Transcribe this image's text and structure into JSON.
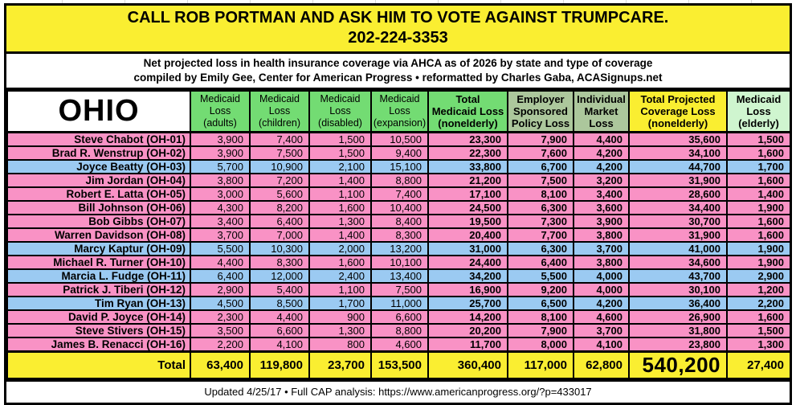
{
  "colors": {
    "yellow": "#FAEE31",
    "green": "#73DC73",
    "sage": "#ACC79C",
    "pale_green": "#CFF5CF",
    "pink": "#F992C5",
    "blue": "#9BCAF2",
    "border": "#000000"
  },
  "banner": {
    "line1": "CALL ROB PORTMAN AND ASK HIM TO VOTE AGAINST TRUMPCARE.",
    "line2": "202-224-3353"
  },
  "subtitle": {
    "line1": "Net projected loss in health insurance coverage via AHCA as of 2026 by state and type of coverage",
    "line2": "compiled by Emily Gee, Center for American Progress  •  reformatted by Charles Gaba, ACASignups.net"
  },
  "table": {
    "state_label": "OHIO",
    "columns": [
      {
        "key": "medicaid-adults",
        "label": "Medicaid\nLoss\n(adults)",
        "bg": "#73DC73",
        "bold": false
      },
      {
        "key": "medicaid-children",
        "label": "Medicaid\nLoss\n(children)",
        "bg": "#73DC73",
        "bold": false
      },
      {
        "key": "medicaid-disabled",
        "label": "Medicaid\nLoss\n(disabled)",
        "bg": "#73DC73",
        "bold": false
      },
      {
        "key": "medicaid-expansion",
        "label": "Medicaid\nLoss\n(expansion)",
        "bg": "#73DC73",
        "bold": false
      },
      {
        "key": "total-medicaid-nonelderly",
        "label": "Total\nMedicaid Loss\n(nonelderly)",
        "bg": "#73DC73",
        "bold": true
      },
      {
        "key": "employer-sponsored",
        "label": "Employer\nSponsored\nPolicy Loss",
        "bg": "#ACC79C",
        "bold": true
      },
      {
        "key": "individual-market",
        "label": "Individual\nMarket\nLoss",
        "bg": "#ACC79C",
        "bold": true
      },
      {
        "key": "total-projected",
        "label": "Total Projected\nCoverage Loss\n(nonelderly)",
        "bg": "#FAEE31",
        "bold": true
      },
      {
        "key": "medicaid-elderly",
        "label": "Medicaid\nLoss\n(elderly)",
        "bg": "#CFF5CF",
        "bold": true
      }
    ],
    "rows": [
      {
        "name": "Steve Chabot (OH-01)",
        "party": "pink",
        "values": [
          "3,900",
          "7,400",
          "1,500",
          "10,500",
          "23,300",
          "7,900",
          "4,400",
          "35,600",
          "1,500"
        ]
      },
      {
        "name": "Brad R. Wenstrup (OH-02)",
        "party": "pink",
        "values": [
          "3,900",
          "7,500",
          "1,500",
          "9,400",
          "22,300",
          "7,600",
          "4,200",
          "34,100",
          "1,600"
        ]
      },
      {
        "name": "Joyce Beatty (OH-03)",
        "party": "blue",
        "values": [
          "5,700",
          "10,900",
          "2,100",
          "15,100",
          "33,800",
          "6,700",
          "4,200",
          "44,700",
          "1,700"
        ]
      },
      {
        "name": "Jim Jordan (OH-04)",
        "party": "pink",
        "values": [
          "3,800",
          "7,200",
          "1,400",
          "8,800",
          "21,200",
          "7,500",
          "3,200",
          "31,900",
          "1,600"
        ]
      },
      {
        "name": "Robert E. Latta (OH-05)",
        "party": "pink",
        "values": [
          "3,000",
          "5,600",
          "1,100",
          "7,400",
          "17,100",
          "8,100",
          "3,400",
          "28,600",
          "1,400"
        ]
      },
      {
        "name": "Bill Johnson (OH-06)",
        "party": "pink",
        "values": [
          "4,300",
          "8,200",
          "1,600",
          "10,400",
          "24,500",
          "6,300",
          "3,600",
          "34,400",
          "1,900"
        ]
      },
      {
        "name": "Bob Gibbs (OH-07)",
        "party": "pink",
        "values": [
          "3,400",
          "6,400",
          "1,300",
          "8,400",
          "19,500",
          "7,300",
          "3,900",
          "30,700",
          "1,600"
        ]
      },
      {
        "name": "Warren Davidson (OH-08)",
        "party": "pink",
        "values": [
          "3,700",
          "7,000",
          "1,400",
          "8,300",
          "20,400",
          "7,700",
          "3,800",
          "31,900",
          "1,600"
        ]
      },
      {
        "name": "Marcy Kaptur (OH-09)",
        "party": "blue",
        "values": [
          "5,500",
          "10,300",
          "2,000",
          "13,200",
          "31,000",
          "6,300",
          "3,700",
          "41,000",
          "1,900"
        ]
      },
      {
        "name": "Michael R. Turner (OH-10)",
        "party": "pink",
        "values": [
          "4,400",
          "8,300",
          "1,600",
          "10,100",
          "24,400",
          "6,400",
          "3,800",
          "34,600",
          "1,900"
        ]
      },
      {
        "name": "Marcia L. Fudge (OH-11)",
        "party": "blue",
        "values": [
          "6,400",
          "12,000",
          "2,400",
          "13,400",
          "34,200",
          "5,500",
          "4,000",
          "43,700",
          "2,900"
        ]
      },
      {
        "name": "Patrick J. Tiberi (OH-12)",
        "party": "pink",
        "values": [
          "2,900",
          "5,400",
          "1,100",
          "7,500",
          "16,900",
          "9,200",
          "4,000",
          "30,100",
          "1,200"
        ]
      },
      {
        "name": "Tim Ryan (OH-13)",
        "party": "blue",
        "values": [
          "4,500",
          "8,500",
          "1,700",
          "11,000",
          "25,700",
          "6,500",
          "4,200",
          "36,400",
          "2,200"
        ]
      },
      {
        "name": "David P. Joyce (OH-14)",
        "party": "pink",
        "values": [
          "2,300",
          "4,400",
          "900",
          "6,600",
          "14,200",
          "8,100",
          "4,600",
          "26,900",
          "1,600"
        ]
      },
      {
        "name": "Steve Stivers (OH-15)",
        "party": "pink",
        "values": [
          "3,500",
          "6,600",
          "1,300",
          "8,800",
          "20,200",
          "7,900",
          "3,700",
          "31,800",
          "1,500"
        ]
      },
      {
        "name": "James B. Renacci (OH-16)",
        "party": "pink",
        "values": [
          "2,200",
          "4,100",
          "800",
          "4,600",
          "11,700",
          "8,000",
          "4,100",
          "23,800",
          "1,300"
        ]
      }
    ],
    "total": {
      "label": "Total",
      "values": [
        "63,400",
        "119,800",
        "23,700",
        "153,500",
        "360,400",
        "117,000",
        "62,800",
        "540,200",
        "27,400"
      ]
    }
  },
  "footer": {
    "text": "Updated 4/25/17  •  Full CAP analysis: https://www.americanprogress.org/?p=433017"
  },
  "chart_data": {
    "type": "table",
    "title": "Net projected loss in health insurance coverage via AHCA as of 2026 — Ohio",
    "columns": [
      "Medicaid Loss (adults)",
      "Medicaid Loss (children)",
      "Medicaid Loss (disabled)",
      "Medicaid Loss (expansion)",
      "Total Medicaid Loss (nonelderly)",
      "Employer Sponsored Policy Loss",
      "Individual Market Loss",
      "Total Projected Coverage Loss (nonelderly)",
      "Medicaid Loss (elderly)"
    ],
    "rows": [
      {
        "district": "Steve Chabot (OH-01)",
        "values": [
          3900,
          7400,
          1500,
          10500,
          23300,
          7900,
          4400,
          35600,
          1500
        ]
      },
      {
        "district": "Brad R. Wenstrup (OH-02)",
        "values": [
          3900,
          7500,
          1500,
          9400,
          22300,
          7600,
          4200,
          34100,
          1600
        ]
      },
      {
        "district": "Joyce Beatty (OH-03)",
        "values": [
          5700,
          10900,
          2100,
          15100,
          33800,
          6700,
          4200,
          44700,
          1700
        ]
      },
      {
        "district": "Jim Jordan (OH-04)",
        "values": [
          3800,
          7200,
          1400,
          8800,
          21200,
          7500,
          3200,
          31900,
          1600
        ]
      },
      {
        "district": "Robert E. Latta (OH-05)",
        "values": [
          3000,
          5600,
          1100,
          7400,
          17100,
          8100,
          3400,
          28600,
          1400
        ]
      },
      {
        "district": "Bill Johnson (OH-06)",
        "values": [
          4300,
          8200,
          1600,
          10400,
          24500,
          6300,
          3600,
          34400,
          1900
        ]
      },
      {
        "district": "Bob Gibbs (OH-07)",
        "values": [
          3400,
          6400,
          1300,
          8400,
          19500,
          7300,
          3900,
          30700,
          1600
        ]
      },
      {
        "district": "Warren Davidson (OH-08)",
        "values": [
          3700,
          7000,
          1400,
          8300,
          20400,
          7700,
          3800,
          31900,
          1600
        ]
      },
      {
        "district": "Marcy Kaptur (OH-09)",
        "values": [
          5500,
          10300,
          2000,
          13200,
          31000,
          6300,
          3700,
          41000,
          1900
        ]
      },
      {
        "district": "Michael R. Turner (OH-10)",
        "values": [
          4400,
          8300,
          1600,
          10100,
          24400,
          6400,
          3800,
          34600,
          1900
        ]
      },
      {
        "district": "Marcia L. Fudge (OH-11)",
        "values": [
          6400,
          12000,
          2400,
          13400,
          34200,
          5500,
          4000,
          43700,
          2900
        ]
      },
      {
        "district": "Patrick J. Tiberi (OH-12)",
        "values": [
          2900,
          5400,
          1100,
          7500,
          16900,
          9200,
          4000,
          30100,
          1200
        ]
      },
      {
        "district": "Tim Ryan (OH-13)",
        "values": [
          4500,
          8500,
          1700,
          11000,
          25700,
          6500,
          4200,
          36400,
          2200
        ]
      },
      {
        "district": "David P. Joyce (OH-14)",
        "values": [
          2300,
          4400,
          900,
          6600,
          14200,
          8100,
          4600,
          26900,
          1600
        ]
      },
      {
        "district": "Steve Stivers (OH-15)",
        "values": [
          3500,
          6600,
          1300,
          8800,
          20200,
          7900,
          3700,
          31800,
          1500
        ]
      },
      {
        "district": "James B. Renacci (OH-16)",
        "values": [
          2200,
          4100,
          800,
          4600,
          11700,
          8000,
          4100,
          23800,
          1300
        ]
      }
    ],
    "total_row": {
      "district": "Total",
      "values": [
        63400,
        119800,
        23700,
        153500,
        360400,
        117000,
        62800,
        540200,
        27400
      ]
    }
  }
}
